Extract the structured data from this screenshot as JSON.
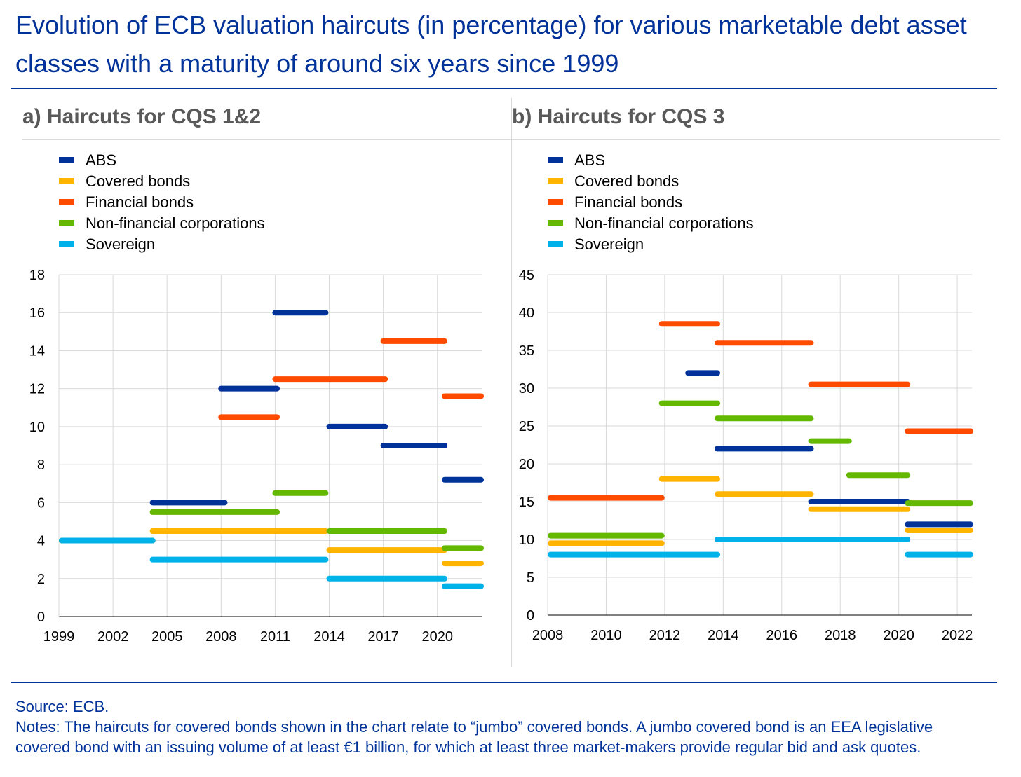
{
  "title": "Evolution of ECB valuation haircuts (in percentage) for various marketable debt asset classes with a maturity of around six years since 1999",
  "colors": {
    "title": "#003299",
    "ABS": "#003299",
    "Covered bonds": "#FFB400",
    "Financial bonds": "#FF4B00",
    "Non-financial corporations": "#65B800",
    "Sovereign": "#00B1EA",
    "grid": "#d9d9d9"
  },
  "footer": {
    "source": "Source: ECB.",
    "notes_line1": "Notes: The haircuts for covered bonds shown in the chart relate to “jumbo” covered bonds. A jumbo covered bond is an EEA legislative",
    "notes_line2": "covered bond with an issuing volume of at least €1 billion, for which at least three market-makers provide regular bid and ask quotes."
  },
  "chart_data": [
    {
      "type": "line",
      "title": "a) Haircuts for CQS 1&2",
      "legend": [
        "ABS",
        "Covered bonds",
        "Financial bonds",
        "Non-financial corporations",
        "Sovereign"
      ],
      "legend_position": "top-left",
      "xlim": [
        1999,
        2022.5
      ],
      "ylim": [
        0,
        18
      ],
      "xticks": [
        1999,
        2002,
        2005,
        2008,
        2011,
        2014,
        2017,
        2020
      ],
      "yticks": [
        0,
        2,
        4,
        6,
        8,
        10,
        12,
        14,
        16,
        18
      ],
      "grid": true,
      "series": [
        {
          "name": "ABS",
          "segments": [
            {
              "x": [
                2004.2,
                2008.2
              ],
              "y": 6.0
            },
            {
              "x": [
                2011.0,
                2013.8
              ],
              "y": 16.0
            },
            {
              "x": [
                2008.0,
                2011.1
              ],
              "y": 12.0
            },
            {
              "x": [
                2014.0,
                2017.1
              ],
              "y": 10.0
            },
            {
              "x": [
                2017.0,
                2020.4
              ],
              "y": 9.0
            },
            {
              "x": [
                2020.4,
                2022.5
              ],
              "y": 7.2
            }
          ]
        },
        {
          "name": "Covered bonds",
          "segments": [
            {
              "x": [
                2004.2,
                2013.8
              ],
              "y": 4.5
            },
            {
              "x": [
                2014.0,
                2020.4
              ],
              "y": 3.5
            },
            {
              "x": [
                2020.4,
                2022.5
              ],
              "y": 2.8
            }
          ]
        },
        {
          "name": "Financial bonds",
          "segments": [
            {
              "x": [
                2008.0,
                2011.1
              ],
              "y": 10.5
            },
            {
              "x": [
                2011.0,
                2017.1
              ],
              "y": 12.5
            },
            {
              "x": [
                2017.0,
                2020.4
              ],
              "y": 14.5
            },
            {
              "x": [
                2020.4,
                2022.5
              ],
              "y": 11.6
            }
          ]
        },
        {
          "name": "Non-financial corporations",
          "segments": [
            {
              "x": [
                1999.0,
                2004.2
              ],
              "y": 4.0
            },
            {
              "x": [
                2004.2,
                2011.1
              ],
              "y": 5.5
            },
            {
              "x": [
                2011.0,
                2013.8
              ],
              "y": 6.5
            },
            {
              "x": [
                2014.0,
                2020.4
              ],
              "y": 4.5
            },
            {
              "x": [
                2020.4,
                2022.5
              ],
              "y": 3.6
            }
          ]
        },
        {
          "name": "Sovereign",
          "segments": [
            {
              "x": [
                1999.0,
                2004.2
              ],
              "y": 4.0
            },
            {
              "x": [
                2004.2,
                2013.8
              ],
              "y": 3.0
            },
            {
              "x": [
                2014.0,
                2020.4
              ],
              "y": 2.0
            },
            {
              "x": [
                2020.4,
                2022.5
              ],
              "y": 1.6
            }
          ]
        }
      ]
    },
    {
      "type": "line",
      "title": "b) Haircuts for CQS 3",
      "legend": [
        "ABS",
        "Covered bonds",
        "Financial bonds",
        "Non-financial corporations",
        "Sovereign"
      ],
      "legend_position": "top-left",
      "xlim": [
        2008,
        2022.5
      ],
      "ylim": [
        0,
        45
      ],
      "xticks": [
        2008,
        2010,
        2012,
        2014,
        2016,
        2018,
        2020,
        2022
      ],
      "yticks": [
        0,
        5,
        10,
        15,
        20,
        25,
        30,
        35,
        40,
        45
      ],
      "grid": true,
      "series": [
        {
          "name": "ABS",
          "segments": [
            {
              "x": [
                2012.8,
                2013.8
              ],
              "y": 32.0
            },
            {
              "x": [
                2013.8,
                2017.0
              ],
              "y": 22.0
            },
            {
              "x": [
                2017.0,
                2020.3
              ],
              "y": 15.0
            },
            {
              "x": [
                2020.3,
                2022.5
              ],
              "y": 12.0
            }
          ]
        },
        {
          "name": "Covered bonds",
          "segments": [
            {
              "x": [
                2008.0,
                2011.9
              ],
              "y": 9.5
            },
            {
              "x": [
                2011.9,
                2013.8
              ],
              "y": 18.0
            },
            {
              "x": [
                2013.8,
                2017.0
              ],
              "y": 16.0
            },
            {
              "x": [
                2017.0,
                2020.3
              ],
              "y": 14.0
            },
            {
              "x": [
                2020.3,
                2022.5
              ],
              "y": 11.2
            }
          ]
        },
        {
          "name": "Financial bonds",
          "segments": [
            {
              "x": [
                2008.0,
                2011.9
              ],
              "y": 15.5
            },
            {
              "x": [
                2011.9,
                2013.8
              ],
              "y": 38.5
            },
            {
              "x": [
                2013.8,
                2017.0
              ],
              "y": 36.0
            },
            {
              "x": [
                2017.0,
                2020.3
              ],
              "y": 30.5
            },
            {
              "x": [
                2020.3,
                2022.5
              ],
              "y": 24.3
            }
          ]
        },
        {
          "name": "Non-financial corporations",
          "segments": [
            {
              "x": [
                2008.0,
                2011.9
              ],
              "y": 10.5
            },
            {
              "x": [
                2011.9,
                2013.8
              ],
              "y": 28.0
            },
            {
              "x": [
                2013.8,
                2017.0
              ],
              "y": 26.0
            },
            {
              "x": [
                2017.0,
                2018.3
              ],
              "y": 23.0
            },
            {
              "x": [
                2018.3,
                2020.3
              ],
              "y": 18.5
            },
            {
              "x": [
                2020.3,
                2022.5
              ],
              "y": 14.8
            }
          ]
        },
        {
          "name": "Sovereign",
          "segments": [
            {
              "x": [
                2008.0,
                2013.8
              ],
              "y": 8.0
            },
            {
              "x": [
                2013.8,
                2020.3
              ],
              "y": 10.0
            },
            {
              "x": [
                2020.3,
                2022.5
              ],
              "y": 8.0
            }
          ]
        }
      ]
    }
  ]
}
